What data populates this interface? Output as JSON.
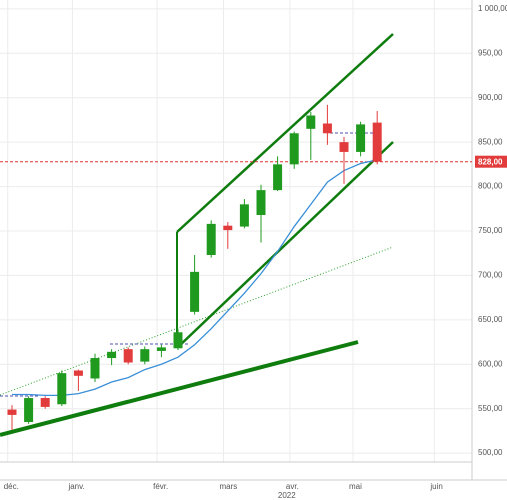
{
  "chart_data": {
    "type": "candlestick",
    "open": [
      549,
      535,
      562,
      555,
      593,
      584,
      607,
      617,
      603,
      615,
      618,
      659,
      723,
      756,
      755,
      768,
      796,
      825,
      865,
      871,
      850,
      839,
      872
    ],
    "high": [
      554,
      564,
      564,
      593,
      594,
      612,
      617,
      619,
      620,
      622,
      640,
      723,
      762,
      760,
      786,
      802,
      834,
      862,
      884,
      892,
      856,
      873,
      885
    ],
    "low": [
      526,
      533,
      550,
      553,
      570,
      580,
      599,
      600,
      600,
      608,
      616,
      656,
      720,
      730,
      753,
      737,
      795,
      820,
      830,
      847,
      803,
      834,
      825
    ],
    "close": [
      543,
      562,
      552,
      590,
      587,
      607,
      614,
      602,
      617,
      619,
      636,
      704,
      758,
      751,
      780,
      796,
      825,
      860,
      880,
      860,
      839,
      870,
      828
    ],
    "moving_average": [
      566,
      566,
      565,
      565,
      567,
      572,
      580,
      585,
      594,
      600,
      608,
      622,
      640,
      660,
      680,
      702,
      727,
      755,
      780,
      805,
      818,
      826,
      830
    ],
    "up_color": "#1f9a1f",
    "down_color": "#e23b3b",
    "ma_color": "#3a8fd8",
    "ylim": [
      490,
      1010
    ],
    "yticks": [
      {
        "value": 500,
        "label": "500,00"
      },
      {
        "value": 550,
        "label": "550,00"
      },
      {
        "value": 600,
        "label": "600,00"
      },
      {
        "value": 650,
        "label": "650,00"
      },
      {
        "value": 700,
        "label": "700,00"
      },
      {
        "value": 750,
        "label": "750,00"
      },
      {
        "value": 800,
        "label": "800,00"
      },
      {
        "value": 850,
        "label": "850,00"
      },
      {
        "value": 900,
        "label": "900,00"
      },
      {
        "value": 950,
        "label": "950,00"
      },
      {
        "value": 1000,
        "label": "1 000,00"
      }
    ],
    "last_price": {
      "value": 828,
      "label": "828,00"
    },
    "months": [
      "déc.",
      "janv.",
      "févr.",
      "mars",
      "avr.",
      "mai",
      "juin"
    ],
    "year": "2022",
    "grid": true
  }
}
